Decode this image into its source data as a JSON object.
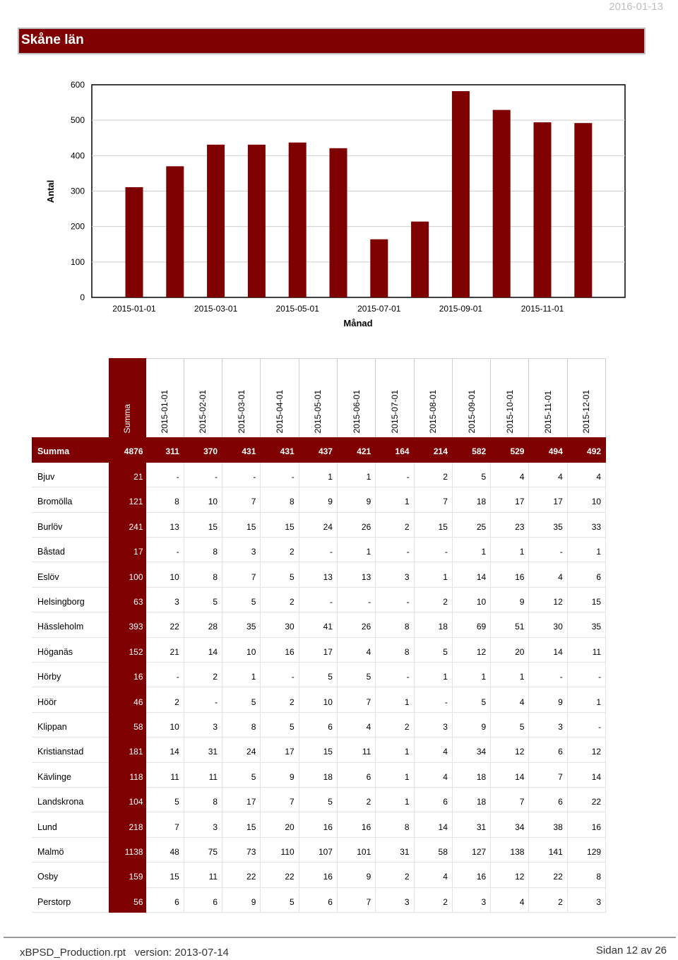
{
  "header": {
    "date": "2016-01-13",
    "title": "Skåne län"
  },
  "chart_data": {
    "type": "bar",
    "categories": [
      "2015-01-01",
      "2015-02-01",
      "2015-03-01",
      "2015-04-01",
      "2015-05-01",
      "2015-06-01",
      "2015-07-01",
      "2015-08-01",
      "2015-09-01",
      "2015-10-01",
      "2015-11-01",
      "2015-12-01"
    ],
    "tick_labels": [
      "2015-01-01",
      "2015-03-01",
      "2015-05-01",
      "2015-07-01",
      "2015-09-01",
      "2015-11-01"
    ],
    "values": [
      311,
      370,
      431,
      431,
      437,
      421,
      164,
      214,
      582,
      529,
      494,
      492
    ],
    "xlabel": "Månad",
    "ylabel": "Antal",
    "ylim": [
      0,
      600
    ],
    "yticks": [
      0,
      100,
      200,
      300,
      400,
      500,
      600
    ],
    "grid": true,
    "bar_color": "#7f0000"
  },
  "table": {
    "col_headers": [
      "Summa",
      "2015-01-01",
      "2015-02-01",
      "2015-03-01",
      "2015-04-01",
      "2015-05-01",
      "2015-06-01",
      "2015-07-01",
      "2015-08-01",
      "2015-09-01",
      "2015-10-01",
      "2015-11-01",
      "2015-12-01"
    ],
    "rows": [
      {
        "name": "Summa",
        "values": [
          "4876",
          "311",
          "370",
          "431",
          "431",
          "437",
          "421",
          "164",
          "214",
          "582",
          "529",
          "494",
          "492"
        ]
      },
      {
        "name": "Bjuv",
        "values": [
          "21",
          "-",
          "-",
          "-",
          "-",
          "1",
          "1",
          "-",
          "2",
          "5",
          "4",
          "4",
          "4"
        ]
      },
      {
        "name": "Bromölla",
        "values": [
          "121",
          "8",
          "10",
          "7",
          "8",
          "9",
          "9",
          "1",
          "7",
          "18",
          "17",
          "17",
          "10"
        ]
      },
      {
        "name": "Burlöv",
        "values": [
          "241",
          "13",
          "15",
          "15",
          "15",
          "24",
          "26",
          "2",
          "15",
          "25",
          "23",
          "35",
          "33"
        ]
      },
      {
        "name": "Båstad",
        "values": [
          "17",
          "-",
          "8",
          "3",
          "2",
          "-",
          "1",
          "-",
          "-",
          "1",
          "1",
          "-",
          "1"
        ]
      },
      {
        "name": "Eslöv",
        "values": [
          "100",
          "10",
          "8",
          "7",
          "5",
          "13",
          "13",
          "3",
          "1",
          "14",
          "16",
          "4",
          "6"
        ]
      },
      {
        "name": "Helsingborg",
        "values": [
          "63",
          "3",
          "5",
          "5",
          "2",
          "-",
          "-",
          "-",
          "2",
          "10",
          "9",
          "12",
          "15"
        ]
      },
      {
        "name": "Hässleholm",
        "values": [
          "393",
          "22",
          "28",
          "35",
          "30",
          "41",
          "26",
          "8",
          "18",
          "69",
          "51",
          "30",
          "35"
        ]
      },
      {
        "name": "Höganäs",
        "values": [
          "152",
          "21",
          "14",
          "10",
          "16",
          "17",
          "4",
          "8",
          "5",
          "12",
          "20",
          "14",
          "11"
        ]
      },
      {
        "name": "Hörby",
        "values": [
          "16",
          "-",
          "2",
          "1",
          "-",
          "5",
          "5",
          "-",
          "1",
          "1",
          "1",
          "-",
          "-"
        ]
      },
      {
        "name": "Höör",
        "values": [
          "46",
          "2",
          "-",
          "5",
          "2",
          "10",
          "7",
          "1",
          "-",
          "5",
          "4",
          "9",
          "1"
        ]
      },
      {
        "name": "Klippan",
        "values": [
          "58",
          "10",
          "3",
          "8",
          "5",
          "6",
          "4",
          "2",
          "3",
          "9",
          "5",
          "3",
          "-"
        ]
      },
      {
        "name": "Kristianstad",
        "values": [
          "181",
          "14",
          "31",
          "24",
          "17",
          "15",
          "11",
          "1",
          "4",
          "34",
          "12",
          "6",
          "12"
        ]
      },
      {
        "name": "Kävlinge",
        "values": [
          "118",
          "11",
          "11",
          "5",
          "9",
          "18",
          "6",
          "1",
          "4",
          "18",
          "14",
          "7",
          "14"
        ]
      },
      {
        "name": "Landskrona",
        "values": [
          "104",
          "5",
          "8",
          "17",
          "7",
          "5",
          "2",
          "1",
          "6",
          "18",
          "7",
          "6",
          "22"
        ]
      },
      {
        "name": "Lund",
        "values": [
          "218",
          "7",
          "3",
          "15",
          "20",
          "16",
          "16",
          "8",
          "14",
          "31",
          "34",
          "38",
          "16"
        ]
      },
      {
        "name": "Malmö",
        "values": [
          "1138",
          "48",
          "75",
          "73",
          "110",
          "107",
          "101",
          "31",
          "58",
          "127",
          "138",
          "141",
          "129"
        ]
      },
      {
        "name": "Osby",
        "values": [
          "159",
          "15",
          "11",
          "22",
          "22",
          "16",
          "9",
          "2",
          "4",
          "16",
          "12",
          "22",
          "8"
        ]
      },
      {
        "name": "Perstorp",
        "values": [
          "56",
          "6",
          "6",
          "9",
          "5",
          "6",
          "7",
          "3",
          "2",
          "3",
          "4",
          "2",
          "3"
        ]
      }
    ]
  },
  "footer": {
    "left": "xBPSD_Production.rpt   version: 2013-07-14",
    "right": "Sidan 12 av 26"
  }
}
